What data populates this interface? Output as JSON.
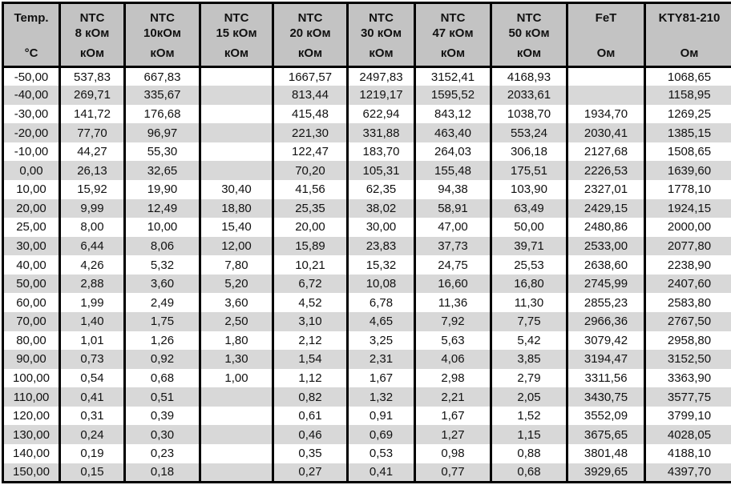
{
  "colors": {
    "header_bg": "#c3c3c3",
    "row_shaded_bg": "#d8d8d8",
    "row_plain_bg": "#ffffff",
    "border": "#000000",
    "text": "#111111"
  },
  "table": {
    "columns": [
      {
        "line1": "Temp.",
        "line2": "",
        "unit": "°C"
      },
      {
        "line1": "NTC",
        "line2": "8 кОм",
        "unit": "кОм"
      },
      {
        "line1": "NTC",
        "line2": "10кОм",
        "unit": "кОм"
      },
      {
        "line1": "NTC",
        "line2": "15 кОм",
        "unit": "кОм"
      },
      {
        "line1": "NTC",
        "line2": "20 кОм",
        "unit": "кОм"
      },
      {
        "line1": "NTC",
        "line2": "30 кОм",
        "unit": "кОм"
      },
      {
        "line1": "NTC",
        "line2": "47 кОм",
        "unit": "кОм"
      },
      {
        "line1": "NTC",
        "line2": "50 кОм",
        "unit": "кОм"
      },
      {
        "line1": "FeT",
        "line2": "",
        "unit": "Ом"
      },
      {
        "line1": "KTY81-210",
        "line2": "",
        "unit": "Ом"
      }
    ],
    "rows": [
      {
        "temp": "-50,00",
        "values": [
          "537,83",
          "667,83",
          "",
          "1667,57",
          "2497,83",
          "3152,41",
          "4168,93",
          "",
          "1068,65"
        ]
      },
      {
        "temp": "-40,00",
        "values": [
          "269,71",
          "335,67",
          "",
          "813,44",
          "1219,17",
          "1595,52",
          "2033,61",
          "",
          "1158,95"
        ]
      },
      {
        "temp": "-30,00",
        "values": [
          "141,72",
          "176,68",
          "",
          "415,48",
          "622,94",
          "843,12",
          "1038,70",
          "1934,70",
          "1269,25"
        ]
      },
      {
        "temp": "-20,00",
        "values": [
          "77,70",
          "96,97",
          "",
          "221,30",
          "331,88",
          "463,40",
          "553,24",
          "2030,41",
          "1385,15"
        ]
      },
      {
        "temp": "-10,00",
        "values": [
          "44,27",
          "55,30",
          "",
          "122,47",
          "183,70",
          "264,03",
          "306,18",
          "2127,68",
          "1508,65"
        ]
      },
      {
        "temp": "0,00",
        "values": [
          "26,13",
          "32,65",
          "",
          "70,20",
          "105,31",
          "155,48",
          "175,51",
          "2226,53",
          "1639,60"
        ]
      },
      {
        "temp": "10,00",
        "values": [
          "15,92",
          "19,90",
          "30,40",
          "41,56",
          "62,35",
          "94,38",
          "103,90",
          "2327,01",
          "1778,10"
        ]
      },
      {
        "temp": "20,00",
        "values": [
          "9,99",
          "12,49",
          "18,80",
          "25,35",
          "38,02",
          "58,91",
          "63,49",
          "2429,15",
          "1924,15"
        ]
      },
      {
        "temp": "25,00",
        "values": [
          "8,00",
          "10,00",
          "15,40",
          "20,00",
          "30,00",
          "47,00",
          "50,00",
          "2480,86",
          "2000,00"
        ]
      },
      {
        "temp": "30,00",
        "values": [
          "6,44",
          "8,06",
          "12,00",
          "15,89",
          "23,83",
          "37,73",
          "39,71",
          "2533,00",
          "2077,80"
        ]
      },
      {
        "temp": "40,00",
        "values": [
          "4,26",
          "5,32",
          "7,80",
          "10,21",
          "15,32",
          "24,75",
          "25,53",
          "2638,60",
          "2238,90"
        ]
      },
      {
        "temp": "50,00",
        "values": [
          "2,88",
          "3,60",
          "5,20",
          "6,72",
          "10,08",
          "16,60",
          "16,80",
          "2745,99",
          "2407,60"
        ]
      },
      {
        "temp": "60,00",
        "values": [
          "1,99",
          "2,49",
          "3,60",
          "4,52",
          "6,78",
          "11,36",
          "11,30",
          "2855,23",
          "2583,80"
        ]
      },
      {
        "temp": "70,00",
        "values": [
          "1,40",
          "1,75",
          "2,50",
          "3,10",
          "4,65",
          "7,92",
          "7,75",
          "2966,36",
          "2767,50"
        ]
      },
      {
        "temp": "80,00",
        "values": [
          "1,01",
          "1,26",
          "1,80",
          "2,12",
          "3,25",
          "5,63",
          "5,42",
          "3079,42",
          "2958,80"
        ]
      },
      {
        "temp": "90,00",
        "values": [
          "0,73",
          "0,92",
          "1,30",
          "1,54",
          "2,31",
          "4,06",
          "3,85",
          "3194,47",
          "3152,50"
        ]
      },
      {
        "temp": "100,00",
        "values": [
          "0,54",
          "0,68",
          "1,00",
          "1,12",
          "1,67",
          "2,98",
          "2,79",
          "3311,56",
          "3363,90"
        ]
      },
      {
        "temp": "110,00",
        "values": [
          "0,41",
          "0,51",
          "",
          "0,82",
          "1,32",
          "2,21",
          "2,05",
          "3430,75",
          "3577,75"
        ]
      },
      {
        "temp": "120,00",
        "values": [
          "0,31",
          "0,39",
          "",
          "0,61",
          "0,91",
          "1,67",
          "1,52",
          "3552,09",
          "3799,10"
        ]
      },
      {
        "temp": "130,00",
        "values": [
          "0,24",
          "0,30",
          "",
          "0,46",
          "0,69",
          "1,27",
          "1,15",
          "3675,65",
          "4028,05"
        ]
      },
      {
        "temp": "140,00",
        "values": [
          "0,19",
          "0,23",
          "",
          "0,35",
          "0,53",
          "0,98",
          "0,88",
          "3801,48",
          "4188,10"
        ]
      },
      {
        "temp": "150,00",
        "values": [
          "0,15",
          "0,18",
          "",
          "0,27",
          "0,41",
          "0,77",
          "0,68",
          "3929,65",
          "4397,70"
        ]
      }
    ]
  }
}
